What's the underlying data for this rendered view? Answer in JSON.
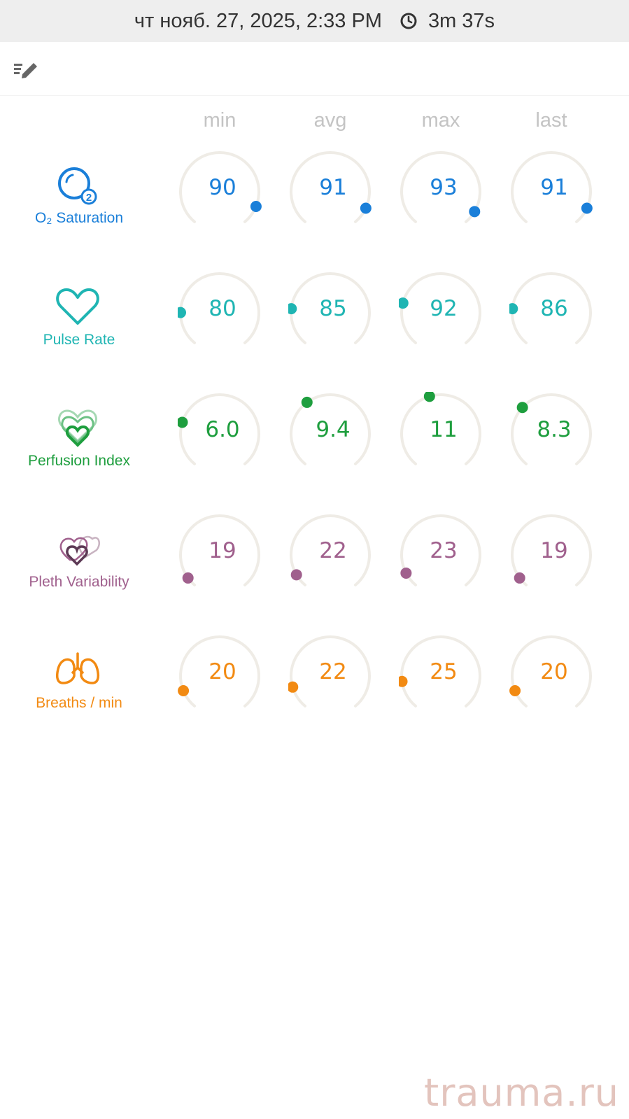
{
  "status_bar": {
    "date_time": "чт нояб. 27, 2025, 2:33 PM",
    "duration": "3m 37s"
  },
  "toolbar": {
    "edit_icon": "edit-list-icon"
  },
  "columns": [
    "min",
    "avg",
    "max",
    "last"
  ],
  "metrics": [
    {
      "label": "O₂ Saturation",
      "icon": "o2-saturation-icon",
      "color": "#1a7fd9",
      "values": [
        "90",
        "91",
        "93",
        "91"
      ],
      "levels": [
        0.9,
        0.91,
        0.93,
        0.91
      ]
    },
    {
      "label": "Pulse Rate",
      "icon": "heart-icon",
      "color": "#1fb5b3",
      "values": [
        "80",
        "85",
        "92",
        "86"
      ],
      "levels": [
        0.18,
        0.2,
        0.23,
        0.2
      ]
    },
    {
      "label": "Perfusion Index",
      "icon": "perfusion-hearts-icon",
      "color": "#1e9e3e",
      "values": [
        "6.0",
        "9.4",
        "11",
        "8.3"
      ],
      "levels": [
        0.24,
        0.37,
        0.44,
        0.33
      ]
    },
    {
      "label": "Pleth Variability",
      "icon": "pleth-hearts-icon",
      "color": "#a0608d",
      "values": [
        "19",
        "22",
        "23",
        "19"
      ],
      "levels": [
        0.05,
        0.07,
        0.08,
        0.05
      ]
    },
    {
      "label": "Breaths / min",
      "icon": "lungs-icon",
      "color": "#f28a12",
      "values": [
        "20",
        "22",
        "25",
        "20"
      ],
      "levels": [
        0.1,
        0.12,
        0.15,
        0.1
      ]
    }
  ],
  "watermark": "trauma.ru"
}
